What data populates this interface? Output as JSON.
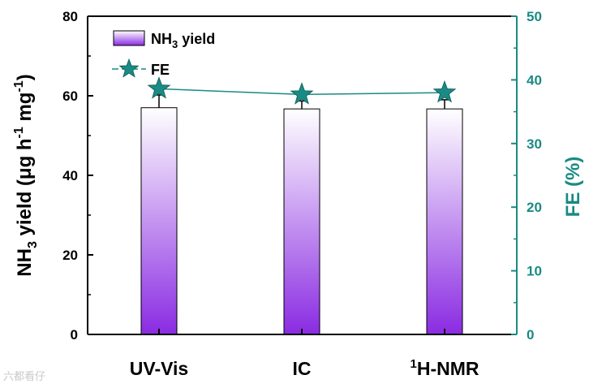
{
  "chart_data": {
    "type": "bar",
    "categories": [
      "UV-Vis",
      "IC",
      "H-NMR"
    ],
    "category_superscripts": [
      "",
      "",
      "1"
    ],
    "series": [
      {
        "name": "NH3 yield",
        "axis": "left",
        "values": [
          57.0,
          56.7,
          56.7
        ],
        "errors": [
          3.2,
          2.0,
          2.3
        ]
      },
      {
        "name": "FE",
        "axis": "right",
        "type": "line",
        "marker": "star",
        "values": [
          38.6,
          37.7,
          38.0
        ]
      }
    ],
    "yleft": {
      "label_parts": [
        {
          "t": "NH",
          "s": "n"
        },
        {
          "t": "3",
          "s": "sub"
        },
        {
          "t": " yield (μg h",
          "s": "n"
        },
        {
          "t": "-1",
          "s": "sup"
        },
        {
          "t": " mg",
          "s": "n"
        },
        {
          "t": "-1",
          "s": "sup"
        },
        {
          "t": ")",
          "s": "n"
        }
      ],
      "ylim": [
        0,
        80
      ],
      "ticks": [
        0,
        20,
        40,
        60,
        80
      ]
    },
    "yright": {
      "label": "FE (%)",
      "ylim": [
        0,
        50
      ],
      "ticks": [
        0,
        10,
        20,
        30,
        40,
        50
      ]
    },
    "legend": {
      "placement": "top-left",
      "entries": [
        {
          "text": "NH",
          "sub": "3",
          "rest": " yield"
        },
        {
          "text": "FE",
          "sub": "",
          "rest": ""
        }
      ]
    },
    "colors": {
      "bar_top": "#ffffff",
      "bar_bottom": "#8a2be2",
      "fe_line": "#1a8a84",
      "right_axis": "#1a8a84"
    },
    "grid": false
  },
  "watermark": "六都看仔"
}
